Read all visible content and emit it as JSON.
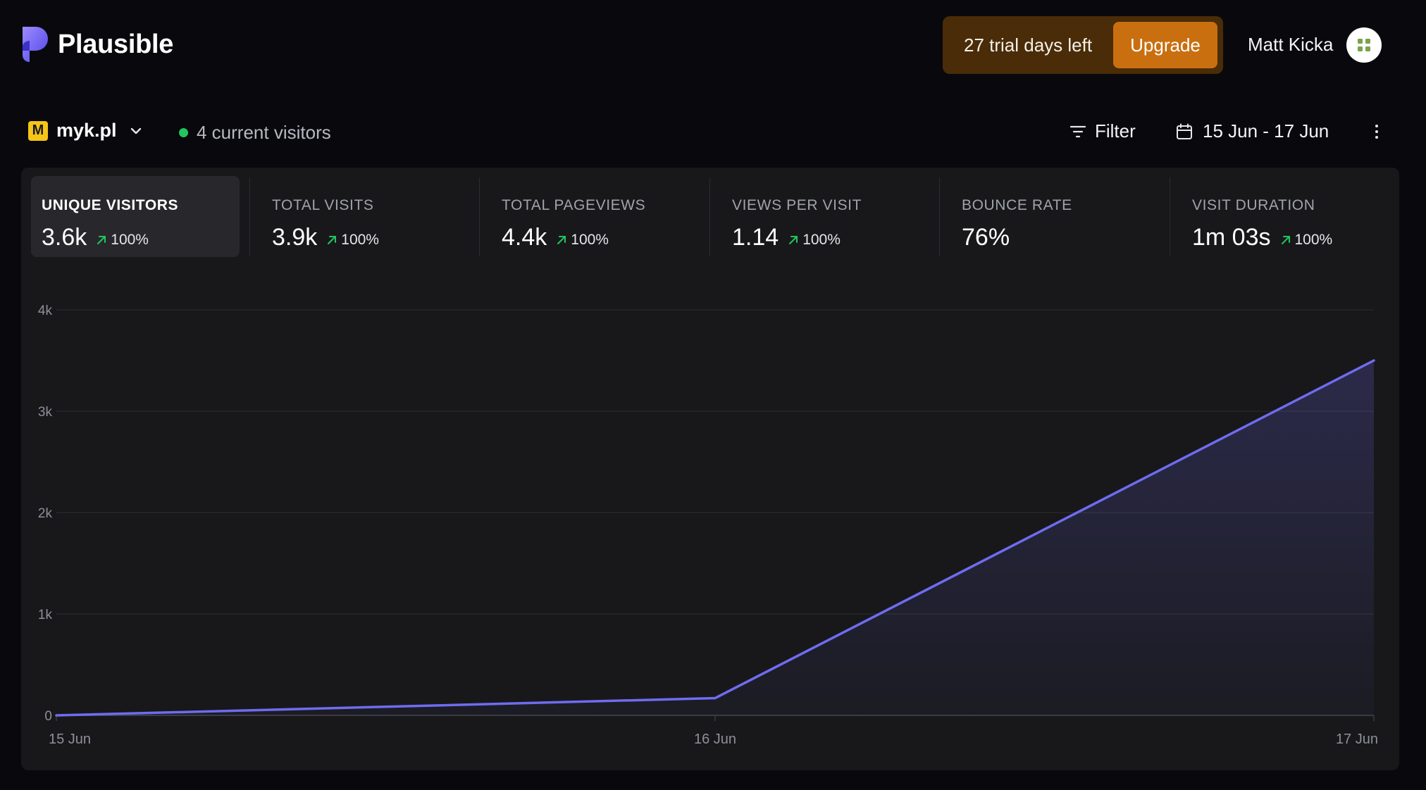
{
  "header": {
    "brand": "Plausible",
    "trial_text": "27 trial days left",
    "upgrade_label": "Upgrade",
    "user_name": "Matt Kicka"
  },
  "toolbar": {
    "site_favicon_letter": "M",
    "site_name": "myk.pl",
    "current_visitors": "4 current visitors",
    "filter_label": "Filter",
    "date_range": "15 Jun - 17 Jun"
  },
  "metrics": [
    {
      "label": "UNIQUE VISITORS",
      "value": "3.6k",
      "change": "100%"
    },
    {
      "label": "TOTAL VISITS",
      "value": "3.9k",
      "change": "100%"
    },
    {
      "label": "TOTAL PAGEVIEWS",
      "value": "4.4k",
      "change": "100%"
    },
    {
      "label": "VIEWS PER VISIT",
      "value": "1.14",
      "change": "100%"
    },
    {
      "label": "BOUNCE RATE",
      "value": "76%",
      "change": ""
    },
    {
      "label": "VISIT DURATION",
      "value": "1m 03s",
      "change": "100%"
    }
  ],
  "colors": {
    "accent_line": "#6f6cf0",
    "change_arrow": "#22c55e",
    "upgrade": "#c96f10",
    "live_dot": "#22c55e"
  },
  "chart_data": {
    "type": "area",
    "x": [
      "15 Jun",
      "16 Jun",
      "17 Jun"
    ],
    "series": [
      {
        "values": [
          0,
          170,
          3500
        ]
      }
    ],
    "yticks": [
      "0",
      "1k",
      "2k",
      "3k",
      "4k"
    ],
    "ylim": [
      0,
      4000
    ],
    "grid": true
  }
}
